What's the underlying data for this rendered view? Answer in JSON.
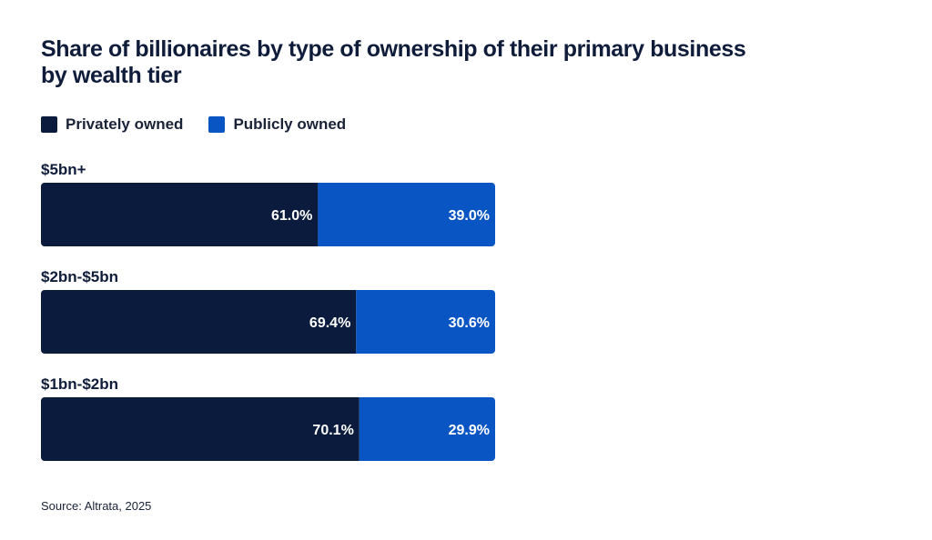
{
  "header": {
    "title_line1": "Share of billionaires by type of ownership of their primary business",
    "title_line2": "by wealth tier"
  },
  "legend": {
    "private_label": "Privately owned",
    "public_label": "Publicly owned"
  },
  "footer": {
    "source": "Source: Altrata, 2025"
  },
  "colors": {
    "private": "#0b1b3d",
    "public": "#0a55c4"
  },
  "chart_data": {
    "type": "bar",
    "orientation": "horizontal",
    "stacked": true,
    "categories": [
      "$5bn+",
      "$2bn-$5bn",
      "$1bn-$2bn"
    ],
    "series": [
      {
        "name": "Privately owned",
        "values": [
          61.0,
          69.4,
          70.1
        ],
        "labels": [
          "61.0%",
          "69.4%",
          "70.1%"
        ]
      },
      {
        "name": "Publicly owned",
        "values": [
          39.0,
          30.6,
          29.9
        ],
        "labels": [
          "39.0%",
          "30.6%",
          "29.9%"
        ]
      }
    ],
    "xlim": [
      0,
      100
    ],
    "grid": false,
    "legend_position": "top-left"
  }
}
